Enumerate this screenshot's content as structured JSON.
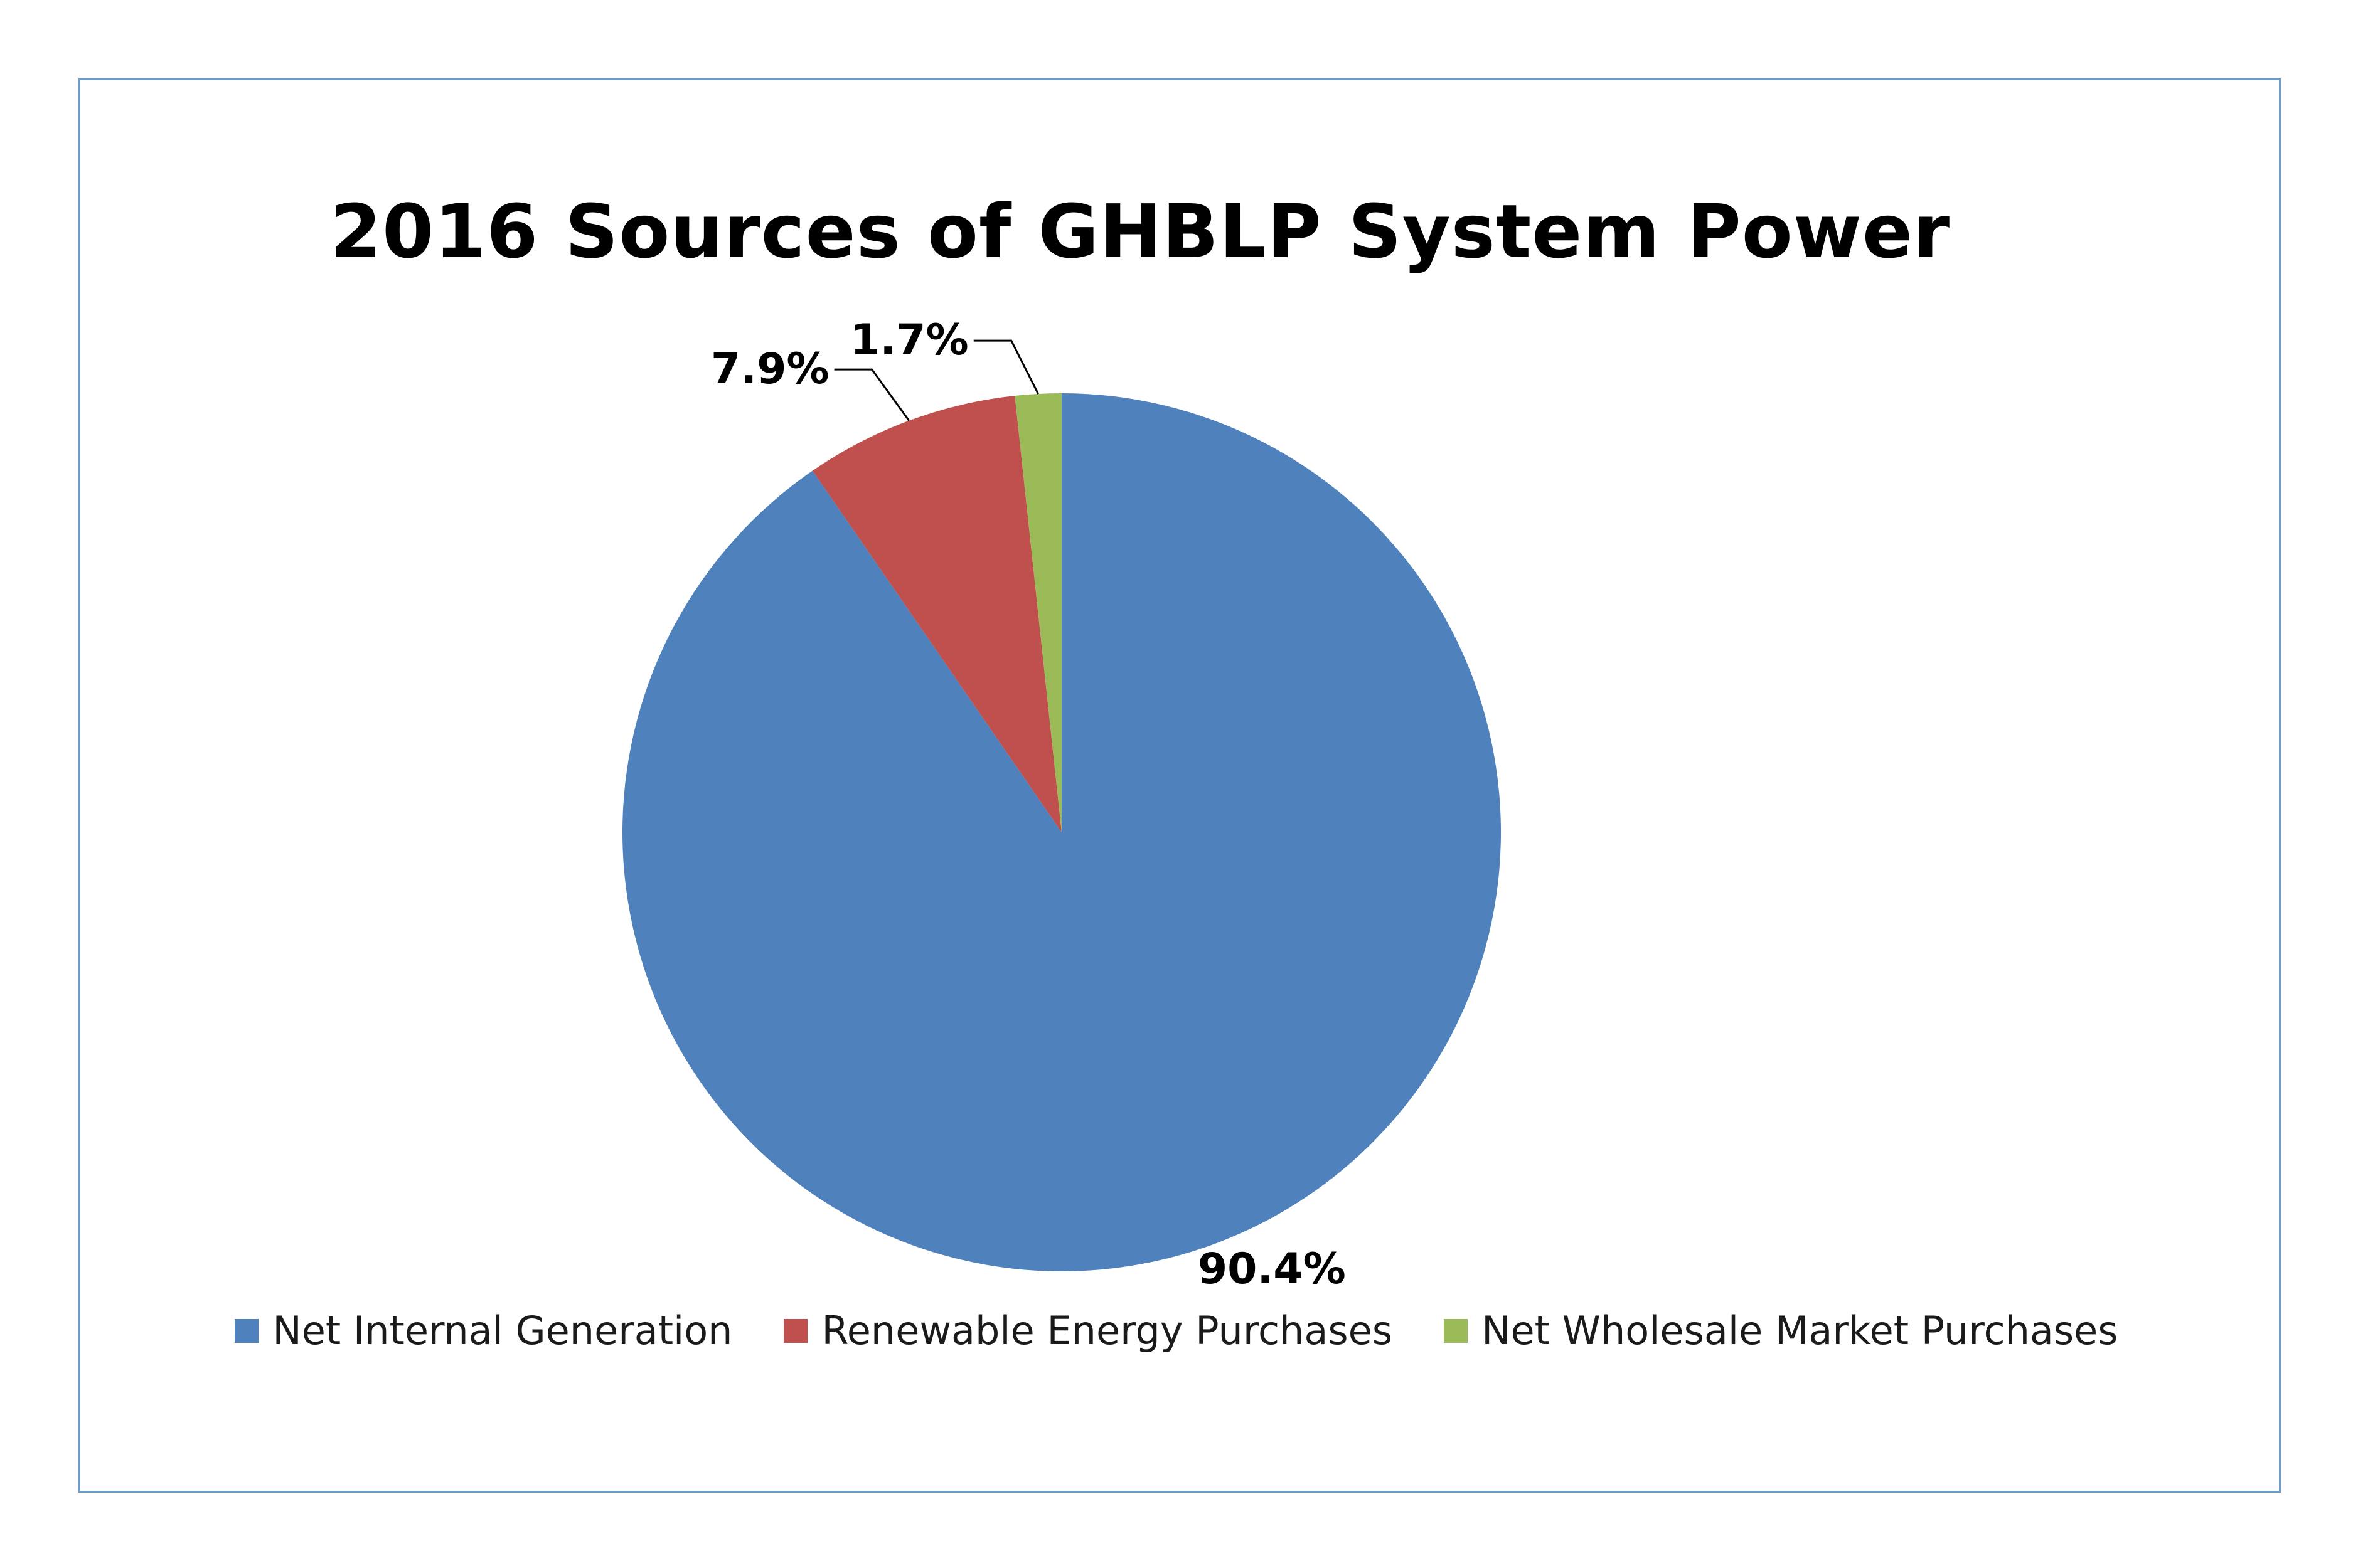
{
  "chart_data": {
    "type": "pie",
    "title": "2016 Sources of GHBLP System Power",
    "categories": [
      "Net Internal Generation",
      "Renewable Energy Purchases",
      "Net Wholesale Market Purchases"
    ],
    "values": [
      90.4,
      7.9,
      1.7
    ],
    "labels": [
      "90.4%",
      "7.9%",
      "1.7%"
    ],
    "colors": [
      "#4f81bd",
      "#c0504d",
      "#9bbb59"
    ],
    "legend_position": "bottom",
    "start_angle": "12-o'clock",
    "direction": "clockwise"
  }
}
